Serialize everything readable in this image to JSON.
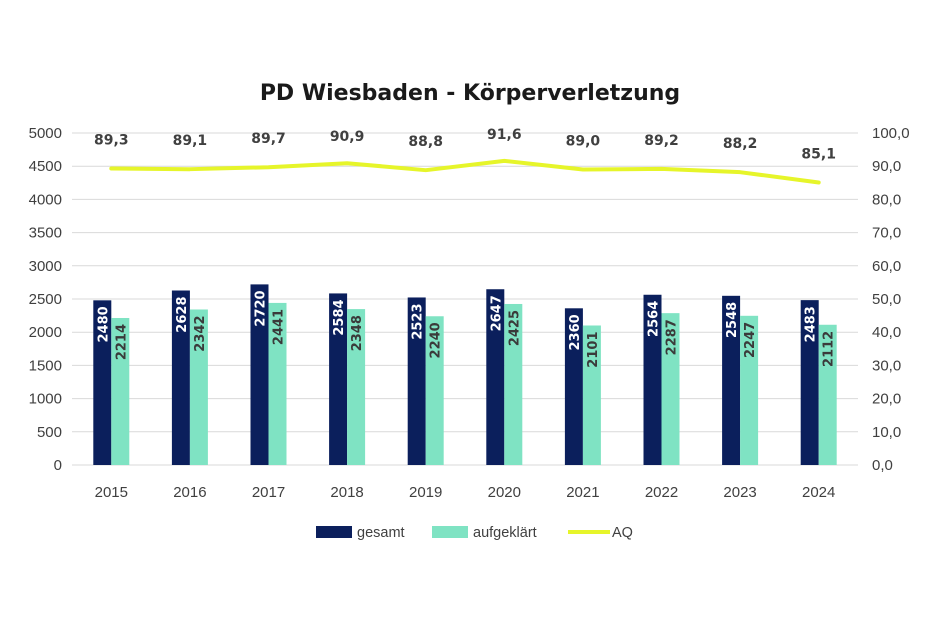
{
  "chart_data": {
    "type": "bar",
    "title": "PD Wiesbaden - Körperverletzung",
    "categories": [
      "2015",
      "2016",
      "2017",
      "2018",
      "2019",
      "2020",
      "2021",
      "2022",
      "2023",
      "2024"
    ],
    "series": [
      {
        "name": "gesamt",
        "type": "bar",
        "axis": "left",
        "color": "#0b1f5c",
        "values": [
          2480,
          2628,
          2720,
          2584,
          2523,
          2647,
          2360,
          2564,
          2548,
          2483
        ],
        "labels": [
          "2480",
          "2628",
          "2720",
          "2584",
          "2523",
          "2647",
          "2360",
          "2564",
          "2548",
          "2483"
        ]
      },
      {
        "name": "aufgeklärt",
        "type": "bar",
        "axis": "left",
        "color": "#7fe3c3",
        "values": [
          2214,
          2342,
          2441,
          2348,
          2240,
          2425,
          2101,
          2287,
          2247,
          2112
        ],
        "labels": [
          "2214",
          "2342",
          "2441",
          "2348",
          "2240",
          "2425",
          "2101",
          "2287",
          "2247",
          "2112"
        ]
      },
      {
        "name": "AQ",
        "type": "line",
        "axis": "right",
        "color": "#e6f52a",
        "values": [
          89.3,
          89.1,
          89.7,
          90.9,
          88.8,
          91.6,
          89.0,
          89.2,
          88.2,
          85.1
        ],
        "labels": [
          "89,3",
          "89,1",
          "89,7",
          "90,9",
          "88,8",
          "91,6",
          "89,0",
          "89,2",
          "88,2",
          "85,1"
        ]
      }
    ],
    "ylim": [
      0,
      5000
    ],
    "y_ticks": [
      "0",
      "500",
      "1000",
      "1500",
      "2000",
      "2500",
      "3000",
      "3500",
      "4000",
      "4500",
      "5000"
    ],
    "y2lim": [
      0,
      100
    ],
    "y2_ticks": [
      "0,0",
      "10,0",
      "20,0",
      "30,0",
      "40,0",
      "50,0",
      "60,0",
      "70,0",
      "80,0",
      "90,0",
      "100,0"
    ],
    "grid": true,
    "legend": "bottom",
    "legend_entries": [
      "gesamt",
      "aufgeklärt",
      "AQ"
    ]
  }
}
